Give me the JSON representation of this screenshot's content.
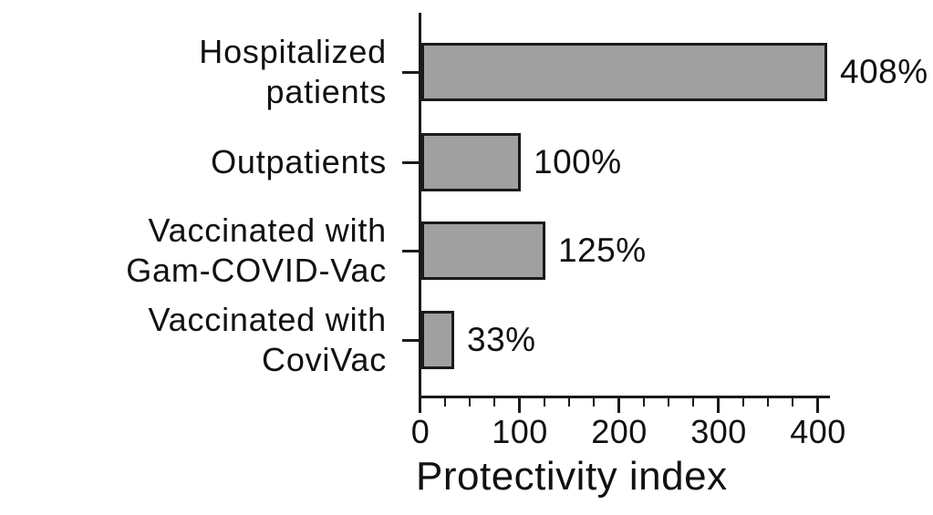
{
  "chart_data": {
    "type": "bar",
    "orientation": "horizontal",
    "title": "",
    "xlabel": "Protectivity index",
    "ylabel": "",
    "categories": [
      "Hospitalized\npatients",
      "Outpatients",
      "Vaccinated with\nGam-COVID-Vac",
      "Vaccinated with\nCoviVac"
    ],
    "values": [
      408,
      100,
      125,
      33
    ],
    "value_labels": [
      "408%",
      "100%",
      "125%",
      "33%"
    ],
    "x_ticks": [
      0,
      100,
      200,
      300,
      400
    ],
    "x_minor_tick_step": 25,
    "xlim": [
      0,
      412
    ],
    "grid": false,
    "legend": false,
    "colors": {
      "bar_fill": "#a0a0a0",
      "bar_border": "#1a1a1a",
      "axis": "#1a1a1a",
      "text": "#111111",
      "background": "#ffffff"
    }
  }
}
